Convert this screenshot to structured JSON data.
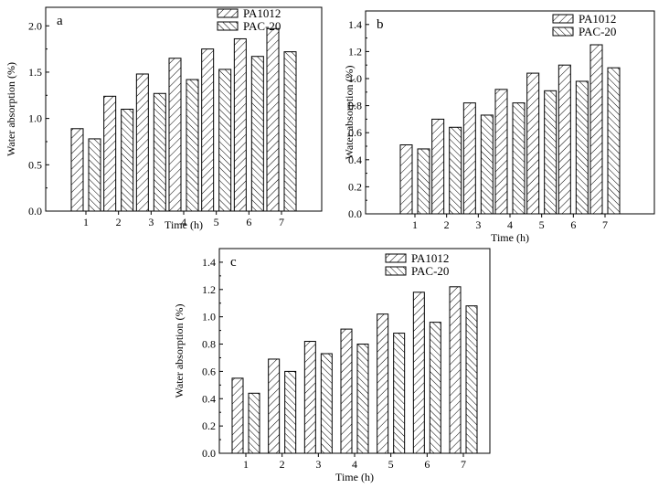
{
  "chart_data": [
    {
      "type": "bar",
      "panel_label": "a",
      "categories": [
        "1",
        "2",
        "3",
        "4",
        "5",
        "6",
        "7"
      ],
      "series": [
        {
          "name": "PA1012",
          "values": [
            0.89,
            1.24,
            1.48,
            1.65,
            1.75,
            1.86,
            1.97
          ]
        },
        {
          "name": "PAC-20",
          "values": [
            0.78,
            1.1,
            1.27,
            1.42,
            1.53,
            1.67,
            1.72
          ]
        }
      ],
      "xlabel": "Time (h)",
      "ylabel": "Water absorption (%)",
      "ylim": [
        0,
        2.2
      ],
      "yticks": [
        "0.0",
        "0.5",
        "1.0",
        "1.5",
        "2.0"
      ],
      "legend_position": "top-right",
      "grid": false
    },
    {
      "type": "bar",
      "panel_label": "b",
      "categories": [
        "1",
        "2",
        "3",
        "4",
        "5",
        "6",
        "7"
      ],
      "series": [
        {
          "name": "PA1012",
          "values": [
            0.51,
            0.7,
            0.82,
            0.92,
            1.04,
            1.1,
            1.25
          ]
        },
        {
          "name": "PAC-20",
          "values": [
            0.48,
            0.64,
            0.73,
            0.82,
            0.91,
            0.98,
            1.08
          ]
        }
      ],
      "xlabel": "Time (h)",
      "ylabel": "Water absorption (%)",
      "ylim": [
        0,
        1.5
      ],
      "yticks": [
        "0.0",
        "0.2",
        "0.4",
        "0.6",
        "0.8",
        "1.0",
        "1.2",
        "1.4"
      ],
      "legend_position": "top-right",
      "grid": false
    },
    {
      "type": "bar",
      "panel_label": "c",
      "categories": [
        "1",
        "2",
        "3",
        "4",
        "5",
        "6",
        "7"
      ],
      "series": [
        {
          "name": "PA1012",
          "values": [
            0.55,
            0.69,
            0.82,
            0.91,
            1.02,
            1.18,
            1.22
          ]
        },
        {
          "name": "PAC-20",
          "values": [
            0.44,
            0.6,
            0.73,
            0.8,
            0.88,
            0.96,
            1.08
          ]
        }
      ],
      "xlabel": "Time (h)",
      "ylabel": "Water absorption (%)",
      "ylim": [
        0,
        1.5
      ],
      "yticks": [
        "0.0",
        "0.2",
        "0.4",
        "0.6",
        "0.8",
        "1.0",
        "1.2",
        "1.4"
      ],
      "legend_position": "top-right",
      "grid": false
    }
  ]
}
